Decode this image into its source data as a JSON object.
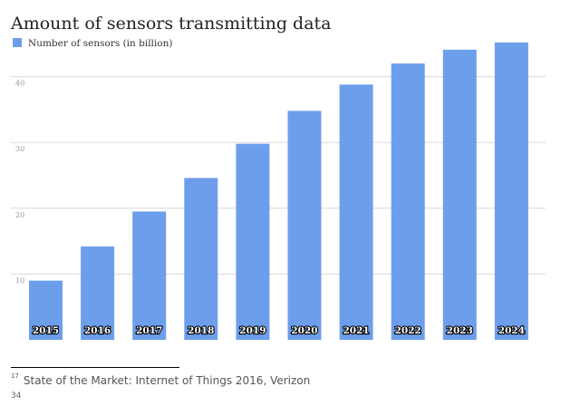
{
  "chart_data": {
    "type": "bar",
    "title": "Amount of sensors transmitting data",
    "legend_position": "top-left",
    "grid": true,
    "categories": [
      "2015",
      "2016",
      "2017",
      "2018",
      "2019",
      "2020",
      "2021",
      "2022",
      "2023",
      "2024"
    ],
    "series": [
      {
        "name": "Number of sensors (in billion)",
        "color": "#6d9eeb",
        "values": [
          9,
          14.2,
          19.5,
          24.6,
          29.8,
          34.8,
          38.8,
          42,
          44.1,
          45.2
        ]
      }
    ],
    "yticks": [
      "10",
      "20",
      "30",
      "40"
    ],
    "ylim": [
      0,
      50
    ]
  },
  "footnote": {
    "marker": "17",
    "text": "State of the Market: Internet of Things 2016, Verizon"
  },
  "page_number": "34"
}
